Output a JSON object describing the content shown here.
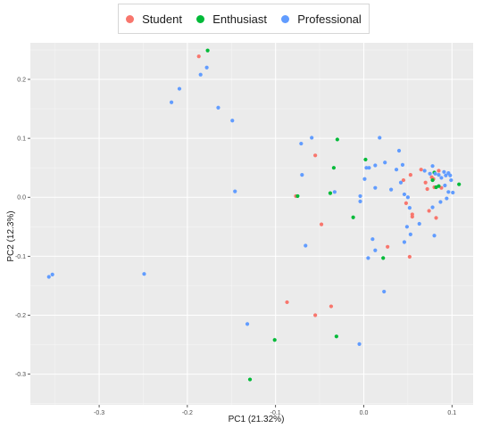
{
  "chart_data": {
    "type": "scatter",
    "title": "",
    "xlabel": "PC1 (21.32%)",
    "ylabel": "PC2 (12.3%)",
    "xlim": [
      -0.378,
      0.124
    ],
    "ylim": [
      -0.352,
      0.262
    ],
    "xticks": [
      -0.3,
      -0.2,
      -0.1,
      0.0,
      0.1
    ],
    "xtick_labels": [
      "-0.3",
      "-0.2",
      "-0.1",
      "0.0",
      "0.1"
    ],
    "yticks": [
      -0.3,
      -0.2,
      -0.1,
      0.0,
      0.1,
      0.2
    ],
    "ytick_labels": [
      "-0.3",
      "-0.2",
      "-0.1",
      "0.0",
      "0.1",
      "0.2"
    ],
    "grid": true,
    "legend_position": "top",
    "series": [
      {
        "name": "Student",
        "color": "#F8766D",
        "points": [
          [
            -0.187,
            0.239
          ],
          [
            -0.055,
            0.071
          ],
          [
            -0.077,
            0.002
          ],
          [
            -0.048,
            -0.046
          ],
          [
            -0.087,
            -0.178
          ],
          [
            -0.055,
            -0.2
          ],
          [
            -0.037,
            -0.185
          ],
          [
            0.027,
            -0.084
          ],
          [
            0.052,
            -0.101
          ],
          [
            0.045,
            0.029
          ],
          [
            0.053,
            0.038
          ],
          [
            0.048,
            -0.01
          ],
          [
            0.055,
            -0.029
          ],
          [
            0.055,
            -0.033
          ],
          [
            0.065,
            0.047
          ],
          [
            0.07,
            0.025
          ],
          [
            0.072,
            0.014
          ],
          [
            0.074,
            -0.023
          ],
          [
            0.077,
            0.034
          ],
          [
            0.079,
            0.031
          ],
          [
            0.08,
            0.017
          ],
          [
            0.082,
            -0.035
          ],
          [
            0.085,
            0.045
          ],
          [
            0.088,
            0.016
          ]
        ]
      },
      {
        "name": "Enthusiast",
        "color": "#00BA38",
        "points": [
          [
            -0.177,
            0.249
          ],
          [
            -0.03,
            0.098
          ],
          [
            -0.034,
            0.05
          ],
          [
            -0.075,
            0.002
          ],
          [
            -0.038,
            0.007
          ],
          [
            0.002,
            0.064
          ],
          [
            -0.012,
            -0.034
          ],
          [
            0.022,
            -0.103
          ],
          [
            0.078,
            0.029
          ],
          [
            0.08,
            0.042
          ],
          [
            0.082,
            0.017
          ],
          [
            0.085,
            0.019
          ],
          [
            0.108,
            0.022
          ],
          [
            -0.031,
            -0.236
          ],
          [
            -0.101,
            -0.242
          ],
          [
            -0.129,
            -0.309
          ]
        ]
      },
      {
        "name": "Professional",
        "color": "#619CFF",
        "points": [
          [
            -0.357,
            -0.135
          ],
          [
            -0.353,
            -0.131
          ],
          [
            -0.249,
            -0.13
          ],
          [
            -0.218,
            0.161
          ],
          [
            -0.209,
            0.184
          ],
          [
            -0.185,
            0.208
          ],
          [
            -0.178,
            0.22
          ],
          [
            -0.165,
            0.152
          ],
          [
            -0.149,
            0.13
          ],
          [
            -0.146,
            0.01
          ],
          [
            -0.132,
            -0.215
          ],
          [
            -0.071,
            0.091
          ],
          [
            -0.059,
            0.101
          ],
          [
            -0.07,
            0.038
          ],
          [
            -0.066,
            -0.082
          ],
          [
            -0.033,
            0.009
          ],
          [
            -0.004,
            0.002
          ],
          [
            -0.004,
            -0.007
          ],
          [
            -0.005,
            -0.249
          ],
          [
            0.018,
            0.101
          ],
          [
            0.024,
            0.059
          ],
          [
            0.04,
            0.079
          ],
          [
            0.044,
            0.055
          ],
          [
            0.037,
            0.047
          ],
          [
            0.006,
            0.05
          ],
          [
            0.003,
            0.05
          ],
          [
            0.013,
            0.016
          ],
          [
            0.031,
            0.013
          ],
          [
            0.042,
            0.025
          ],
          [
            0.046,
            0.005
          ],
          [
            0.05,
            0.0
          ],
          [
            0.052,
            -0.018
          ],
          [
            0.049,
            -0.05
          ],
          [
            0.053,
            -0.063
          ],
          [
            0.046,
            -0.076
          ],
          [
            0.063,
            -0.045
          ],
          [
            0.069,
            0.045
          ],
          [
            0.075,
            0.04
          ],
          [
            0.078,
            0.053
          ],
          [
            0.081,
            0.04
          ],
          [
            0.085,
            0.038
          ],
          [
            0.088,
            0.033
          ],
          [
            0.091,
            0.043
          ],
          [
            0.093,
            0.037
          ],
          [
            0.096,
            0.041
          ],
          [
            0.098,
            0.037
          ],
          [
            0.099,
            0.029
          ],
          [
            0.092,
            0.02
          ],
          [
            0.096,
            0.009
          ],
          [
            0.101,
            0.008
          ],
          [
            0.094,
            -0.002
          ],
          [
            0.078,
            -0.017
          ],
          [
            0.087,
            -0.008
          ],
          [
            0.08,
            -0.065
          ],
          [
            0.01,
            -0.071
          ],
          [
            0.013,
            -0.09
          ],
          [
            0.005,
            -0.103
          ],
          [
            0.023,
            -0.16
          ],
          [
            0.001,
            0.031
          ],
          [
            0.013,
            0.054
          ]
        ]
      }
    ]
  }
}
